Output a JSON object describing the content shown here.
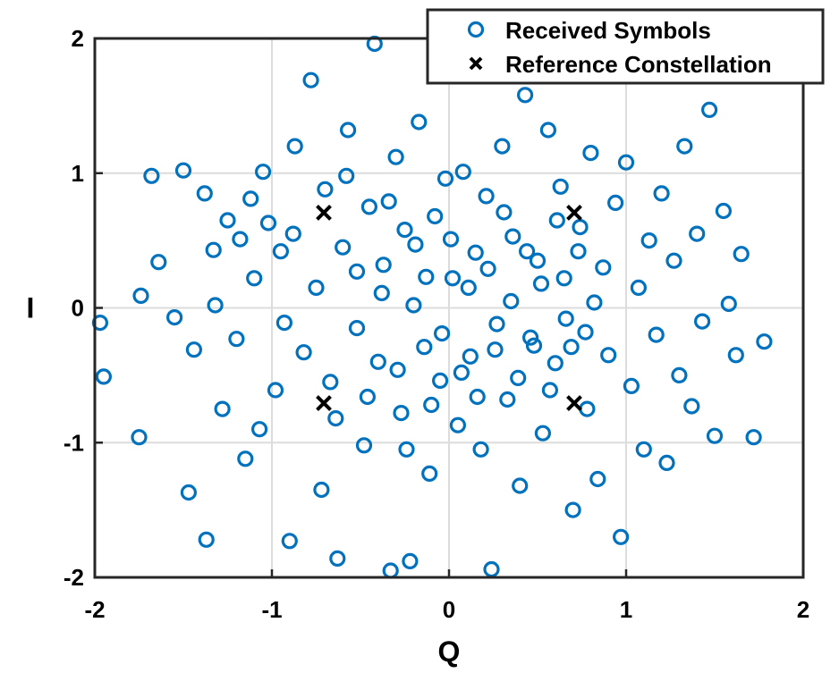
{
  "chart_data": {
    "type": "scatter",
    "title": "",
    "xlabel": "Q",
    "ylabel": "I",
    "xlim": [
      -2,
      2
    ],
    "ylim": [
      -2,
      2
    ],
    "grid": true,
    "legend_position": "top-right",
    "x_ticks": [
      "-2",
      "-1",
      "0",
      "1",
      "2"
    ],
    "y_ticks": [
      "2",
      "1",
      "0",
      "-1",
      "-2"
    ],
    "colors": {
      "received": "#0072BD",
      "reference": "#000000"
    },
    "series": [
      {
        "name": "Received Symbols",
        "marker": "circle",
        "points": [
          [
            -1.97,
            -0.11
          ],
          [
            -1.95,
            -0.51
          ],
          [
            -1.75,
            -0.96
          ],
          [
            -1.74,
            0.09
          ],
          [
            -1.68,
            0.98
          ],
          [
            -1.64,
            0.34
          ],
          [
            -1.55,
            -0.07
          ],
          [
            -1.5,
            1.02
          ],
          [
            -1.47,
            -1.37
          ],
          [
            -1.44,
            -0.31
          ],
          [
            -1.38,
            0.85
          ],
          [
            -1.37,
            -1.72
          ],
          [
            -1.33,
            0.43
          ],
          [
            -1.28,
            -0.75
          ],
          [
            -1.25,
            0.65
          ],
          [
            -1.2,
            -0.23
          ],
          [
            -1.18,
            0.51
          ],
          [
            -1.15,
            -1.12
          ],
          [
            -1.1,
            0.22
          ],
          [
            -1.07,
            -0.9
          ],
          [
            -1.05,
            1.01
          ],
          [
            -1.02,
            0.63
          ],
          [
            -0.98,
            -0.61
          ],
          [
            -0.95,
            0.42
          ],
          [
            -0.9,
            -1.73
          ],
          [
            -0.87,
            1.2
          ],
          [
            -0.82,
            -0.33
          ],
          [
            -0.78,
            1.69
          ],
          [
            -0.75,
            0.15
          ],
          [
            -0.72,
            -1.35
          ],
          [
            -0.7,
            0.88
          ],
          [
            -0.67,
            -0.55
          ],
          [
            -0.63,
            -1.86
          ],
          [
            -0.6,
            0.45
          ],
          [
            -0.57,
            1.32
          ],
          [
            -0.52,
            -0.15
          ],
          [
            -0.48,
            -1.02
          ],
          [
            -0.45,
            0.75
          ],
          [
            -0.42,
            1.96
          ],
          [
            -0.4,
            -0.4
          ],
          [
            -0.37,
            0.32
          ],
          [
            -0.33,
            -1.95
          ],
          [
            -0.3,
            1.12
          ],
          [
            -0.27,
            -0.78
          ],
          [
            -0.25,
            0.58
          ],
          [
            -0.22,
            -1.88
          ],
          [
            -0.2,
            0.02
          ],
          [
            -0.17,
            1.38
          ],
          [
            -0.14,
            -0.29
          ],
          [
            -0.11,
            -1.23
          ],
          [
            -0.08,
            0.68
          ],
          [
            -0.05,
            -0.54
          ],
          [
            -0.02,
            0.96
          ],
          [
            0.02,
            0.22
          ],
          [
            0.05,
            -0.87
          ],
          [
            0.08,
            1.01
          ],
          [
            0.12,
            -0.36
          ],
          [
            0.15,
            0.41
          ],
          [
            0.18,
            -1.05
          ],
          [
            0.21,
            0.83
          ],
          [
            0.24,
            -1.94
          ],
          [
            0.27,
            -0.12
          ],
          [
            0.3,
            1.2
          ],
          [
            0.33,
            -0.68
          ],
          [
            0.36,
            0.53
          ],
          [
            0.4,
            -1.32
          ],
          [
            0.43,
            1.58
          ],
          [
            0.46,
            -0.22
          ],
          [
            0.5,
            0.35
          ],
          [
            0.53,
            -0.93
          ],
          [
            0.56,
            1.32
          ],
          [
            0.6,
            -0.41
          ],
          [
            0.63,
            0.9
          ],
          [
            0.66,
            -0.08
          ],
          [
            0.7,
            -1.5
          ],
          [
            0.74,
            0.6
          ],
          [
            0.78,
            -0.75
          ],
          [
            0.8,
            1.15
          ],
          [
            0.84,
            -1.27
          ],
          [
            0.87,
            0.3
          ],
          [
            0.9,
            -0.35
          ],
          [
            0.94,
            0.78
          ],
          [
            0.97,
            -1.7
          ],
          [
            1.0,
            1.08
          ],
          [
            1.03,
            -0.58
          ],
          [
            1.07,
            0.15
          ],
          [
            1.1,
            -1.05
          ],
          [
            1.13,
            0.5
          ],
          [
            1.17,
            -0.2
          ],
          [
            1.2,
            0.85
          ],
          [
            1.23,
            -1.15
          ],
          [
            1.27,
            0.35
          ],
          [
            1.3,
            -0.5
          ],
          [
            1.33,
            1.2
          ],
          [
            1.37,
            -0.73
          ],
          [
            1.4,
            0.55
          ],
          [
            1.43,
            -0.1
          ],
          [
            1.47,
            1.47
          ],
          [
            1.5,
            -0.95
          ],
          [
            1.55,
            0.72
          ],
          [
            1.58,
            0.03
          ],
          [
            1.62,
            -0.35
          ],
          [
            1.65,
            0.4
          ],
          [
            1.72,
            -0.96
          ],
          [
            1.78,
            -0.25
          ],
          [
            -1.32,
            0.02
          ],
          [
            -1.12,
            0.81
          ],
          [
            -0.93,
            -0.11
          ],
          [
            -0.88,
            0.55
          ],
          [
            -0.64,
            -0.82
          ],
          [
            -0.58,
            0.98
          ],
          [
            -0.52,
            0.27
          ],
          [
            -0.46,
            -0.66
          ],
          [
            -0.38,
            0.11
          ],
          [
            -0.34,
            0.79
          ],
          [
            -0.29,
            -0.46
          ],
          [
            -0.24,
            -1.05
          ],
          [
            -0.19,
            0.47
          ],
          [
            -0.13,
            0.23
          ],
          [
            -0.1,
            -0.72
          ],
          [
            -0.04,
            -0.19
          ],
          [
            0.01,
            0.51
          ],
          [
            0.07,
            -0.48
          ],
          [
            0.11,
            0.15
          ],
          [
            0.16,
            -0.66
          ],
          [
            0.22,
            0.29
          ],
          [
            0.26,
            -0.31
          ],
          [
            0.31,
            0.71
          ],
          [
            0.35,
            0.05
          ],
          [
            0.39,
            -0.52
          ],
          [
            0.44,
            0.42
          ],
          [
            0.48,
            -0.28
          ],
          [
            0.52,
            0.18
          ],
          [
            0.57,
            -0.61
          ],
          [
            0.61,
            0.65
          ],
          [
            0.65,
            0.22
          ],
          [
            0.69,
            -0.29
          ],
          [
            0.73,
            0.42
          ],
          [
            0.77,
            -0.18
          ],
          [
            0.82,
            0.04
          ]
        ]
      },
      {
        "name": "Reference Constellation",
        "marker": "x",
        "points": [
          [
            -0.707,
            0.707
          ],
          [
            0.707,
            0.707
          ],
          [
            -0.707,
            -0.707
          ],
          [
            0.707,
            -0.707
          ]
        ]
      }
    ]
  }
}
